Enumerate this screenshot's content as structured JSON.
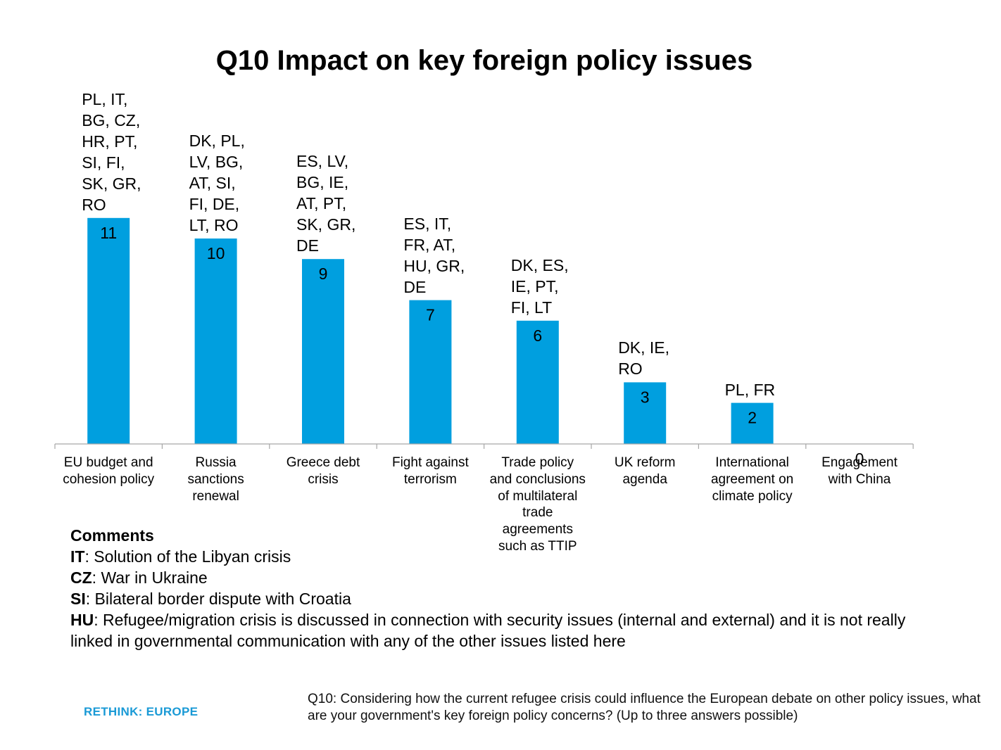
{
  "chart_data": {
    "type": "bar",
    "title": "Q10 Impact on key foreign policy issues",
    "categories": [
      "EU budget and\ncohesion policy",
      "Russia\nsanctions\nrenewal",
      "Greece debt\ncrisis",
      "Fight against\nterrorism",
      "Trade policy\nand conclusions\nof multilateral\ntrade\nagreements\nsuch as TTIP",
      "UK reform\nagenda",
      "International\nagreement on\nclimate policy",
      "Engagement\nwith China"
    ],
    "values": [
      11,
      10,
      9,
      7,
      6,
      3,
      2,
      0
    ],
    "annotations": [
      "PL, IT,\nBG, CZ,\nHR, PT,\nSI, FI,\nSK, GR,\nRO",
      "DK, PL,\nLV, BG,\nAT, SI,\nFI, DE,\nLT, RO",
      "ES, LV,\nBG, IE,\nAT, PT,\nSK, GR,\nDE",
      "ES, IT,\nFR, AT,\nHU, GR,\nDE",
      "DK, ES,\nIE, PT,\nFI, LT",
      "DK, IE,\nRO",
      "PL, FR",
      ""
    ],
    "ylim": [
      0,
      11
    ],
    "grid": false,
    "legend": "none",
    "bar_color": "#009fdf"
  },
  "comments": {
    "heading": "Comments",
    "items": [
      {
        "code": "IT",
        "text": ": Solution of the Libyan crisis"
      },
      {
        "code": "CZ",
        "text": ": War in Ukraine"
      },
      {
        "code": "SI",
        "text": ": Bilateral border dispute with Croatia"
      },
      {
        "code": "HU",
        "text": ": Refugee/migration crisis is discussed in connection with security issues (internal and external) and it is not really linked in governmental communication with any of the other issues listed here"
      }
    ]
  },
  "footer": {
    "logo_text": "RETHINK: EUROPE",
    "logo_color": "#1a9ad6",
    "question": "Q10: Considering how the current refugee crisis could influence the European debate on other policy issues, what are your government's key foreign policy concerns? (Up to three answers possible)"
  }
}
